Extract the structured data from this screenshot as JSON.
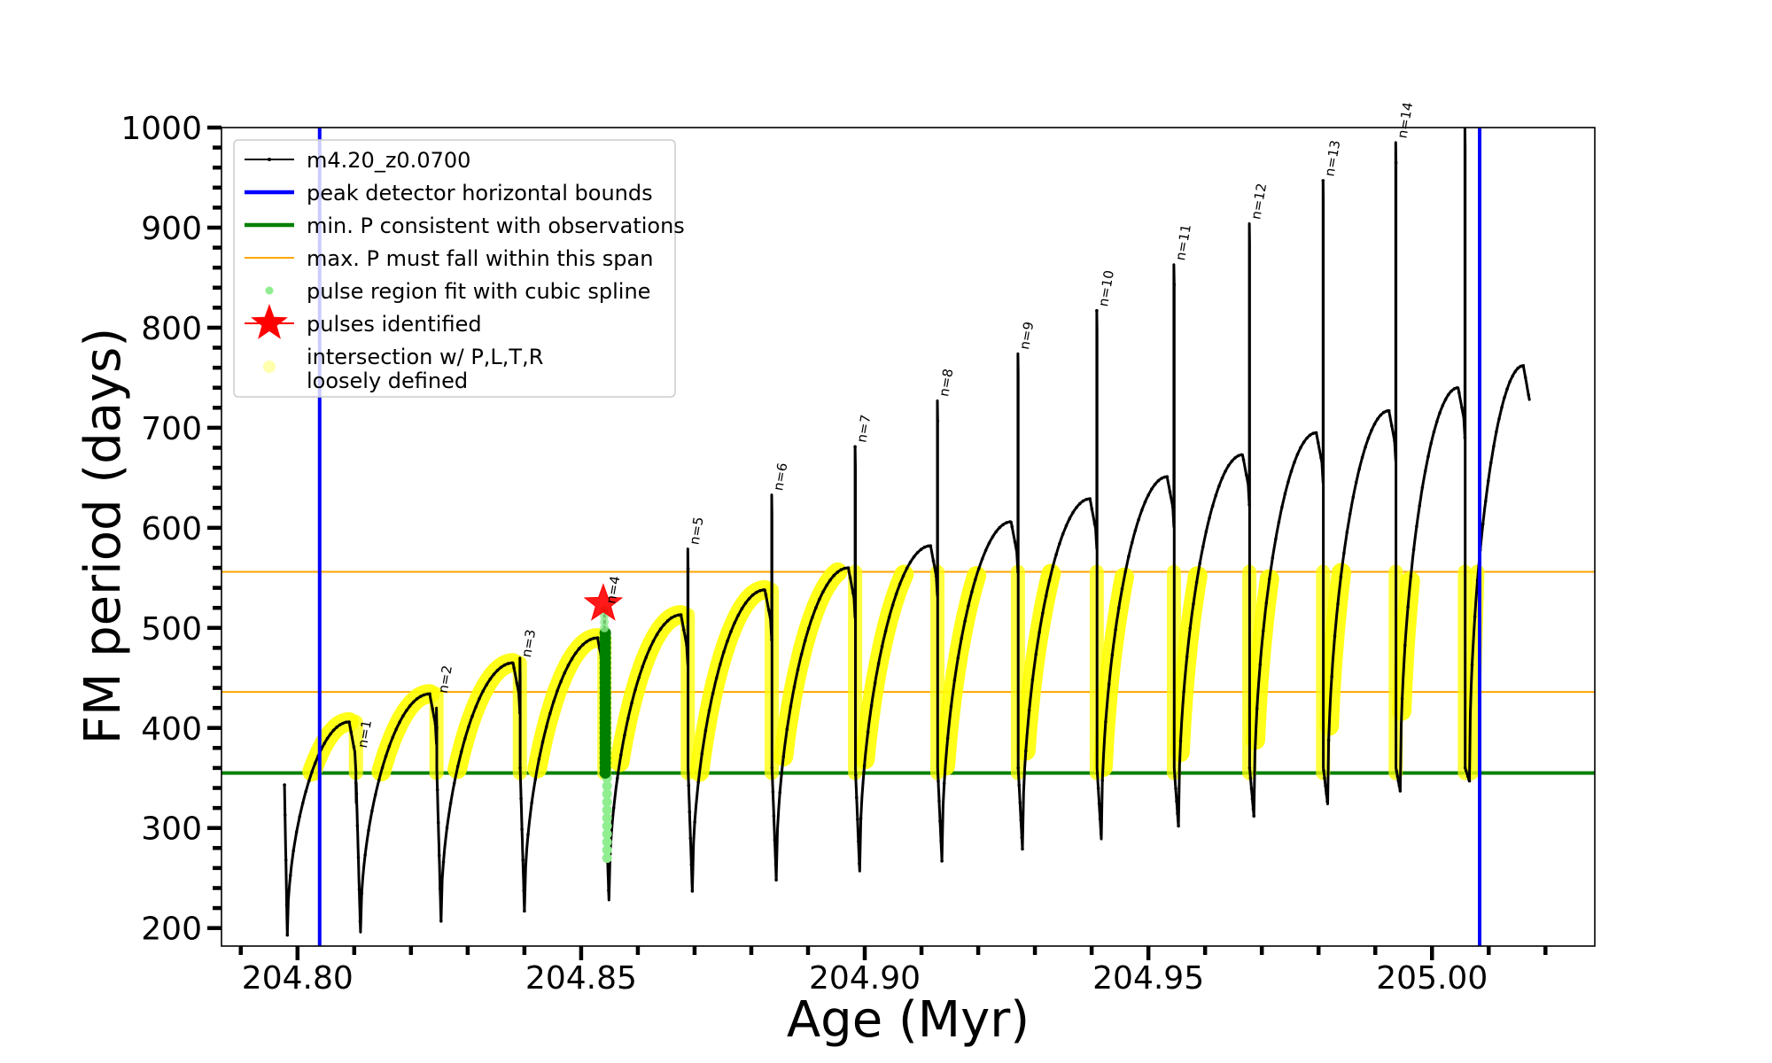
{
  "chart_data": {
    "type": "line",
    "title": "",
    "xlabel": "Age (Myr)",
    "ylabel": "FM period (days)",
    "xlim": [
      204.7866,
      205.0287
    ],
    "ylim": [
      182,
      1000
    ],
    "xticks": [
      204.8,
      204.85,
      204.9,
      204.95,
      205.0
    ],
    "xtick_labels": [
      "204.80",
      "204.85",
      "204.90",
      "204.95",
      "205.00"
    ],
    "xminor_step": 0.01,
    "yticks": [
      200,
      300,
      400,
      500,
      600,
      700,
      800,
      900,
      1000
    ],
    "ytick_labels": [
      "200",
      "300",
      "400",
      "500",
      "600",
      "700",
      "800",
      "900",
      "1000"
    ],
    "yminor_step": 20,
    "grid": false,
    "legend_position": "upper-left",
    "legend": [
      {
        "label": "m4.20_z0.0700",
        "style": "line-dot",
        "color": "#000000"
      },
      {
        "label": "peak detector horizontal bounds",
        "style": "thick-line",
        "color": "#0000ff"
      },
      {
        "label": "min. P consistent with observations",
        "style": "thick-line",
        "color": "#008000"
      },
      {
        "label": "max. P must fall within this span",
        "style": "thin-line",
        "color": "#ffa500"
      },
      {
        "label": "pulse region fit with cubic spline",
        "style": "dot",
        "color": "#90ee90"
      },
      {
        "label": "pulses identified",
        "style": "star",
        "color": "#ff0000"
      },
      {
        "label": "intersection w/ P,L,T,R",
        "label2": "loosely defined",
        "style": "dot",
        "color": "#ffff99"
      }
    ],
    "colors": {
      "track": "#000000",
      "bounds": "#0000ff",
      "min_p": "#008000",
      "max_p": "#ffa500",
      "spline": "#90ee90",
      "spline_dark": "#008000",
      "star": "#ff0000",
      "intersection": "#ffff00"
    },
    "vertical_bounds": [
      204.8039,
      205.0084
    ],
    "min_p_line": 355,
    "max_p_span": [
      436,
      556
    ],
    "track": {
      "name": "m4.20_z0.0700",
      "start": {
        "age": 204.7977,
        "period": 343
      },
      "end": {
        "age": 205.0172,
        "period": 727
      },
      "first_min": {
        "age": 204.7982,
        "period": 193
      },
      "cycles": [
        {
          "n": "n=1",
          "pulse_age": 204.8103,
          "hump_peak": 406,
          "spike": 345,
          "min": 196
        },
        {
          "n": "n=2",
          "pulse_age": 204.8245,
          "hump_peak": 434,
          "spike": 420,
          "min": 207
        },
        {
          "n": "n=3",
          "pulse_age": 204.8392,
          "hump_peak": 465,
          "spike": 470,
          "min": 217
        },
        {
          "n": "n=4",
          "pulse_age": 204.8541,
          "hump_peak": 490,
          "spike": 520,
          "min": 228
        },
        {
          "n": "n=5",
          "pulse_age": 204.8688,
          "hump_peak": 513,
          "spike": 579,
          "min": 237
        },
        {
          "n": "n=6",
          "pulse_age": 204.8836,
          "hump_peak": 538,
          "spike": 633,
          "min": 248
        },
        {
          "n": "n=7",
          "pulse_age": 204.8983,
          "hump_peak": 560,
          "spike": 681,
          "min": 257
        },
        {
          "n": "n=8",
          "pulse_age": 204.9128,
          "hump_peak": 582,
          "spike": 727,
          "min": 267
        },
        {
          "n": "n=9",
          "pulse_age": 204.927,
          "hump_peak": 606,
          "spike": 774,
          "min": 279
        },
        {
          "n": "n=10",
          "pulse_age": 204.9409,
          "hump_peak": 629,
          "spike": 817,
          "min": 289
        },
        {
          "n": "n=11",
          "pulse_age": 204.9545,
          "hump_peak": 651,
          "spike": 863,
          "min": 302
        },
        {
          "n": "n=12",
          "pulse_age": 204.9678,
          "hump_peak": 673,
          "spike": 904,
          "min": 312
        },
        {
          "n": "n=13",
          "pulse_age": 204.9808,
          "hump_peak": 695,
          "spike": 947,
          "min": 324
        },
        {
          "n": "n=14",
          "pulse_age": 204.9936,
          "hump_peak": 717,
          "spike": 985,
          "min": 337
        },
        {
          "n": "",
          "pulse_age": 205.0058,
          "hump_peak": 740,
          "spike": 1000,
          "min": 347
        }
      ],
      "final_peak": {
        "age": 205.0161,
        "period": 762
      }
    },
    "pulses_identified": [
      {
        "age": 204.8539,
        "period": 524
      }
    ]
  }
}
